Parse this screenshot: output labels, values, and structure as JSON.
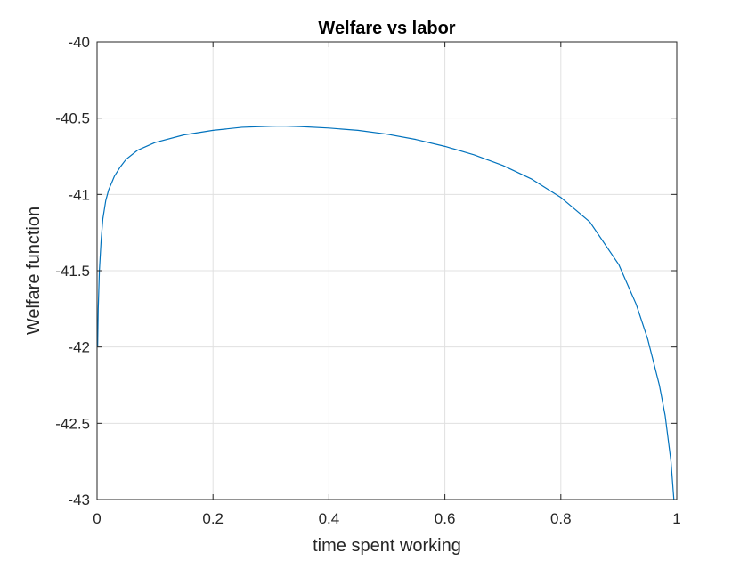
{
  "chart_data": {
    "type": "line",
    "title": "Welfare vs labor",
    "xlabel": "time spent working",
    "ylabel": "Welfare function",
    "xlim": [
      0,
      1
    ],
    "ylim": [
      -43,
      -40
    ],
    "xticks": [
      0,
      0.2,
      0.4,
      0.6,
      0.8,
      1
    ],
    "xtick_labels": [
      "0",
      "0.2",
      "0.4",
      "0.6",
      "0.8",
      "1"
    ],
    "yticks": [
      -40,
      -40.5,
      -41,
      -41.5,
      -42,
      -42.5,
      -43
    ],
    "ytick_labels": [
      "-40",
      "-40.5",
      "-41",
      "-41.5",
      "-42",
      "-42.5",
      "-43"
    ],
    "grid": true,
    "box": true,
    "series": [
      {
        "color": "#0072BD",
        "x": [
          0.001,
          0.002,
          0.004,
          0.007,
          0.01,
          0.015,
          0.02,
          0.03,
          0.04,
          0.05,
          0.07,
          0.1,
          0.15,
          0.2,
          0.25,
          0.3,
          0.32,
          0.35,
          0.4,
          0.45,
          0.5,
          0.55,
          0.6,
          0.65,
          0.7,
          0.75,
          0.8,
          0.85,
          0.9,
          0.93,
          0.95,
          0.97,
          0.98,
          0.99,
          0.995
        ],
        "y": [
          -42.0,
          -41.75,
          -41.5,
          -41.3,
          -41.16,
          -41.04,
          -40.97,
          -40.88,
          -40.82,
          -40.77,
          -40.71,
          -40.66,
          -40.61,
          -40.58,
          -40.56,
          -40.553,
          -40.552,
          -40.555,
          -40.565,
          -40.58,
          -40.605,
          -40.64,
          -40.685,
          -40.74,
          -40.81,
          -40.9,
          -41.02,
          -41.18,
          -41.46,
          -41.72,
          -41.95,
          -42.25,
          -42.45,
          -42.75,
          -43.0
        ]
      }
    ]
  }
}
